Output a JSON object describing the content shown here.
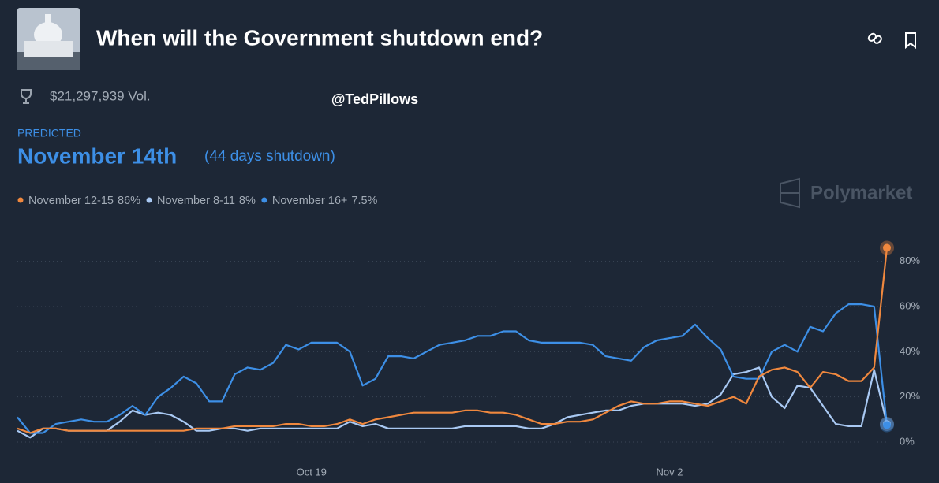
{
  "header": {
    "title": "When will the Government shutdown end?",
    "volume": "$21,297,939 Vol.",
    "watermark": "@TedPillows",
    "predicted_label": "PREDICTED",
    "predicted_value": "November 14th",
    "predicted_note": "(44 days shutdown)",
    "brand": "Polymarket"
  },
  "chart_data": {
    "type": "line",
    "grid": true,
    "categories": [
      null,
      null,
      null,
      null,
      null,
      null,
      null,
      null,
      null,
      null,
      null,
      null,
      null,
      null,
      null,
      null,
      null,
      null,
      null,
      null,
      null,
      null,
      null,
      "Oct 19",
      null,
      null,
      null,
      null,
      null,
      null,
      null,
      null,
      null,
      null,
      null,
      null,
      null,
      null,
      null,
      null,
      null,
      null,
      null,
      null,
      null,
      null,
      null,
      null,
      null,
      null,
      null,
      "Nov 2",
      null,
      null,
      null,
      null,
      null,
      null,
      null,
      null,
      null,
      null,
      null,
      null,
      null,
      null,
      null,
      null,
      null
    ],
    "ylim": [
      0,
      90
    ],
    "yticks": [
      {
        "value": 0,
        "label": "0%"
      },
      {
        "value": 20,
        "label": "20%"
      },
      {
        "value": 40,
        "label": "40%"
      },
      {
        "value": 60,
        "label": "60%"
      },
      {
        "value": 80,
        "label": "80%"
      }
    ],
    "series": [
      {
        "name": "November 12-15",
        "current_label": "86%",
        "color": "#f0883e",
        "values": [
          6,
          4,
          6,
          6,
          5,
          5,
          5,
          5,
          5,
          5,
          5,
          5,
          5,
          5,
          6,
          6,
          6,
          7,
          7,
          7,
          7,
          8,
          8,
          7,
          7,
          8,
          10,
          8,
          10,
          11,
          12,
          13,
          13,
          13,
          13,
          14,
          14,
          13,
          13,
          12,
          10,
          8,
          8,
          9,
          9,
          10,
          13,
          16,
          18,
          17,
          17,
          18,
          18,
          17,
          16,
          18,
          20,
          17,
          29,
          32,
          33,
          31,
          24,
          31,
          30,
          27,
          27,
          33,
          86
        ]
      },
      {
        "name": "November 8-11",
        "current_label": "8%",
        "color": "#a9c9f3",
        "values": [
          5,
          2,
          6,
          6,
          5,
          5,
          5,
          5,
          9,
          14,
          12,
          13,
          12,
          9,
          5,
          5,
          6,
          6,
          5,
          6,
          6,
          6,
          6,
          6,
          6,
          6,
          9,
          7,
          8,
          6,
          6,
          6,
          6,
          6,
          6,
          7,
          7,
          7,
          7,
          7,
          6,
          6,
          8,
          11,
          12,
          13,
          14,
          14,
          16,
          17,
          17,
          17,
          17,
          16,
          17,
          21,
          30,
          31,
          33,
          20,
          15,
          25,
          24,
          16,
          8,
          7,
          7,
          32,
          8
        ]
      },
      {
        "name": "November 16+",
        "current_label": "7.5%",
        "color": "#3d8fe6",
        "values": [
          11,
          4,
          4,
          8,
          9,
          10,
          9,
          9,
          12,
          16,
          12,
          20,
          24,
          29,
          26,
          18,
          18,
          30,
          33,
          32,
          35,
          43,
          41,
          44,
          44,
          44,
          40,
          25,
          28,
          38,
          38,
          37,
          40,
          43,
          44,
          45,
          47,
          47,
          49,
          49,
          45,
          44,
          44,
          44,
          44,
          43,
          38,
          37,
          36,
          42,
          45,
          46,
          47,
          52,
          46,
          41,
          29,
          28,
          28,
          40,
          43,
          40,
          51,
          49,
          57,
          61,
          61,
          60,
          7.5
        ]
      }
    ]
  }
}
